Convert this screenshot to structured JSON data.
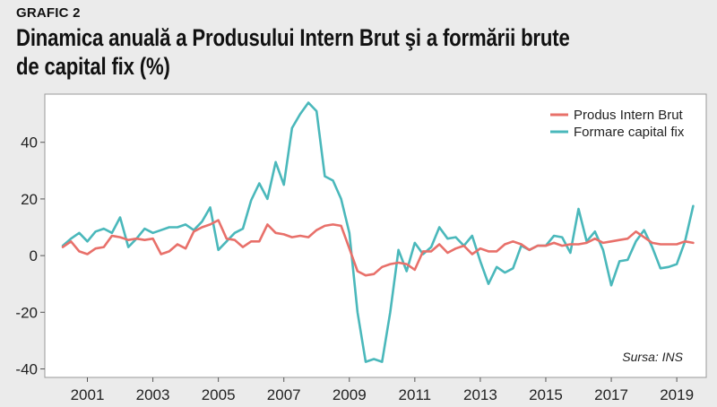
{
  "header": {
    "label": "GRAFIC 2",
    "title": "Dinamica anuală a Produsului Intern Brut şi a formării brute de capital fix (%)"
  },
  "chart_data": {
    "type": "line",
    "title": "Dinamica anuală a Produsului Intern Brut şi a formării brute de capital fix (%)",
    "xlabel": "",
    "ylabel": "",
    "xlim": [
      1999.7,
      2019.9
    ],
    "ylim": [
      -43,
      57
    ],
    "yticks": [
      -40,
      -20,
      0,
      20,
      40
    ],
    "xticks": [
      2001,
      2003,
      2005,
      2007,
      2009,
      2011,
      2013,
      2015,
      2017,
      2019
    ],
    "grid": false,
    "legend_position": "top-right",
    "source": "Sursa: INS",
    "series": [
      {
        "name": "Produs Intern Brut",
        "color": "#e8706a",
        "points": [
          [
            2000.25,
            3
          ],
          [
            2000.5,
            5
          ],
          [
            2000.75,
            1.5
          ],
          [
            2001.0,
            0.5
          ],
          [
            2001.25,
            2.5
          ],
          [
            2001.5,
            3
          ],
          [
            2001.75,
            7
          ],
          [
            2002.0,
            6.5
          ],
          [
            2002.25,
            5.5
          ],
          [
            2002.5,
            6
          ],
          [
            2002.75,
            5.5
          ],
          [
            2003.0,
            6
          ],
          [
            2003.25,
            0.5
          ],
          [
            2003.5,
            1.5
          ],
          [
            2003.75,
            4
          ],
          [
            2004.0,
            2.5
          ],
          [
            2004.25,
            8.5
          ],
          [
            2004.5,
            10
          ],
          [
            2004.75,
            11
          ],
          [
            2005.0,
            12.5
          ],
          [
            2005.25,
            6
          ],
          [
            2005.5,
            5.5
          ],
          [
            2005.75,
            3
          ],
          [
            2006.0,
            5
          ],
          [
            2006.25,
            5
          ],
          [
            2006.5,
            11
          ],
          [
            2006.75,
            8
          ],
          [
            2007.0,
            7.5
          ],
          [
            2007.25,
            6.5
          ],
          [
            2007.5,
            7
          ],
          [
            2007.75,
            6.5
          ],
          [
            2008.0,
            9
          ],
          [
            2008.25,
            10.5
          ],
          [
            2008.5,
            11
          ],
          [
            2008.75,
            10.5
          ],
          [
            2009.0,
            2.5
          ],
          [
            2009.25,
            -5.5
          ],
          [
            2009.5,
            -7
          ],
          [
            2009.75,
            -6.5
          ],
          [
            2010.0,
            -4
          ],
          [
            2010.25,
            -3
          ],
          [
            2010.5,
            -2.5
          ],
          [
            2010.75,
            -3
          ],
          [
            2011.0,
            -5
          ],
          [
            2011.25,
            1.5
          ],
          [
            2011.5,
            1.5
          ],
          [
            2011.75,
            4
          ],
          [
            2012.0,
            1
          ],
          [
            2012.25,
            2.5
          ],
          [
            2012.5,
            3.5
          ],
          [
            2012.75,
            0.5
          ],
          [
            2013.0,
            2.5
          ],
          [
            2013.25,
            1.5
          ],
          [
            2013.5,
            1.5
          ],
          [
            2013.75,
            4
          ],
          [
            2014.0,
            5
          ],
          [
            2014.25,
            4
          ],
          [
            2014.5,
            2
          ],
          [
            2014.75,
            3.5
          ],
          [
            2015.0,
            3.5
          ],
          [
            2015.25,
            4.5
          ],
          [
            2015.5,
            3.5
          ],
          [
            2015.75,
            4
          ],
          [
            2016.0,
            4
          ],
          [
            2016.25,
            4.5
          ],
          [
            2016.5,
            6
          ],
          [
            2016.75,
            4.5
          ],
          [
            2017.0,
            5
          ],
          [
            2017.25,
            5.5
          ],
          [
            2017.5,
            6
          ],
          [
            2017.75,
            8.5
          ],
          [
            2018.0,
            6.5
          ],
          [
            2018.25,
            4.5
          ],
          [
            2018.5,
            4
          ],
          [
            2018.75,
            4
          ],
          [
            2019.0,
            4
          ],
          [
            2019.25,
            5
          ],
          [
            2019.5,
            4.5
          ]
        ]
      },
      {
        "name": "Formare capital fix",
        "color": "#4ab8bb",
        "points": [
          [
            2000.25,
            3.5
          ],
          [
            2000.5,
            6
          ],
          [
            2000.75,
            8
          ],
          [
            2001.0,
            5
          ],
          [
            2001.25,
            8.5
          ],
          [
            2001.5,
            9.5
          ],
          [
            2001.75,
            8
          ],
          [
            2002.0,
            13.5
          ],
          [
            2002.25,
            3
          ],
          [
            2002.5,
            6
          ],
          [
            2002.75,
            9.5
          ],
          [
            2003.0,
            8
          ],
          [
            2003.25,
            9
          ],
          [
            2003.5,
            10
          ],
          [
            2003.75,
            10
          ],
          [
            2004.0,
            11
          ],
          [
            2004.25,
            9
          ],
          [
            2004.5,
            12
          ],
          [
            2004.75,
            17
          ],
          [
            2005.0,
            2
          ],
          [
            2005.25,
            5
          ],
          [
            2005.5,
            8
          ],
          [
            2005.75,
            9.5
          ],
          [
            2006.0,
            19.5
          ],
          [
            2006.25,
            25.5
          ],
          [
            2006.5,
            20
          ],
          [
            2006.75,
            33
          ],
          [
            2007.0,
            25
          ],
          [
            2007.25,
            45
          ],
          [
            2007.5,
            50
          ],
          [
            2007.75,
            54
          ],
          [
            2008.0,
            51
          ],
          [
            2008.25,
            28
          ],
          [
            2008.5,
            26.5
          ],
          [
            2008.75,
            20
          ],
          [
            2009.0,
            8
          ],
          [
            2009.25,
            -20
          ],
          [
            2009.5,
            -37.5
          ],
          [
            2009.75,
            -36.5
          ],
          [
            2010.0,
            -37.5
          ],
          [
            2010.25,
            -20
          ],
          [
            2010.5,
            2
          ],
          [
            2010.75,
            -5.5
          ],
          [
            2011.0,
            4.5
          ],
          [
            2011.25,
            0.5
          ],
          [
            2011.5,
            3
          ],
          [
            2011.75,
            10
          ],
          [
            2012.0,
            6
          ],
          [
            2012.25,
            6.5
          ],
          [
            2012.5,
            3.5
          ],
          [
            2012.75,
            7
          ],
          [
            2013.0,
            -2
          ],
          [
            2013.25,
            -10
          ],
          [
            2013.5,
            -4
          ],
          [
            2013.75,
            -6
          ],
          [
            2014.0,
            -4.5
          ],
          [
            2014.25,
            3.5
          ],
          [
            2014.5,
            2
          ],
          [
            2014.75,
            3.5
          ],
          [
            2015.0,
            3.5
          ],
          [
            2015.25,
            7
          ],
          [
            2015.5,
            6.5
          ],
          [
            2015.75,
            1
          ],
          [
            2016.0,
            16.5
          ],
          [
            2016.25,
            5
          ],
          [
            2016.5,
            8.5
          ],
          [
            2016.75,
            2
          ],
          [
            2017.0,
            -10.5
          ],
          [
            2017.25,
            -2
          ],
          [
            2017.5,
            -1.5
          ],
          [
            2017.75,
            5
          ],
          [
            2018.0,
            9
          ],
          [
            2018.25,
            3
          ],
          [
            2018.5,
            -4.5
          ],
          [
            2018.75,
            -4
          ],
          [
            2019.0,
            -3
          ],
          [
            2019.25,
            5
          ],
          [
            2019.5,
            17.5
          ]
        ]
      }
    ]
  }
}
